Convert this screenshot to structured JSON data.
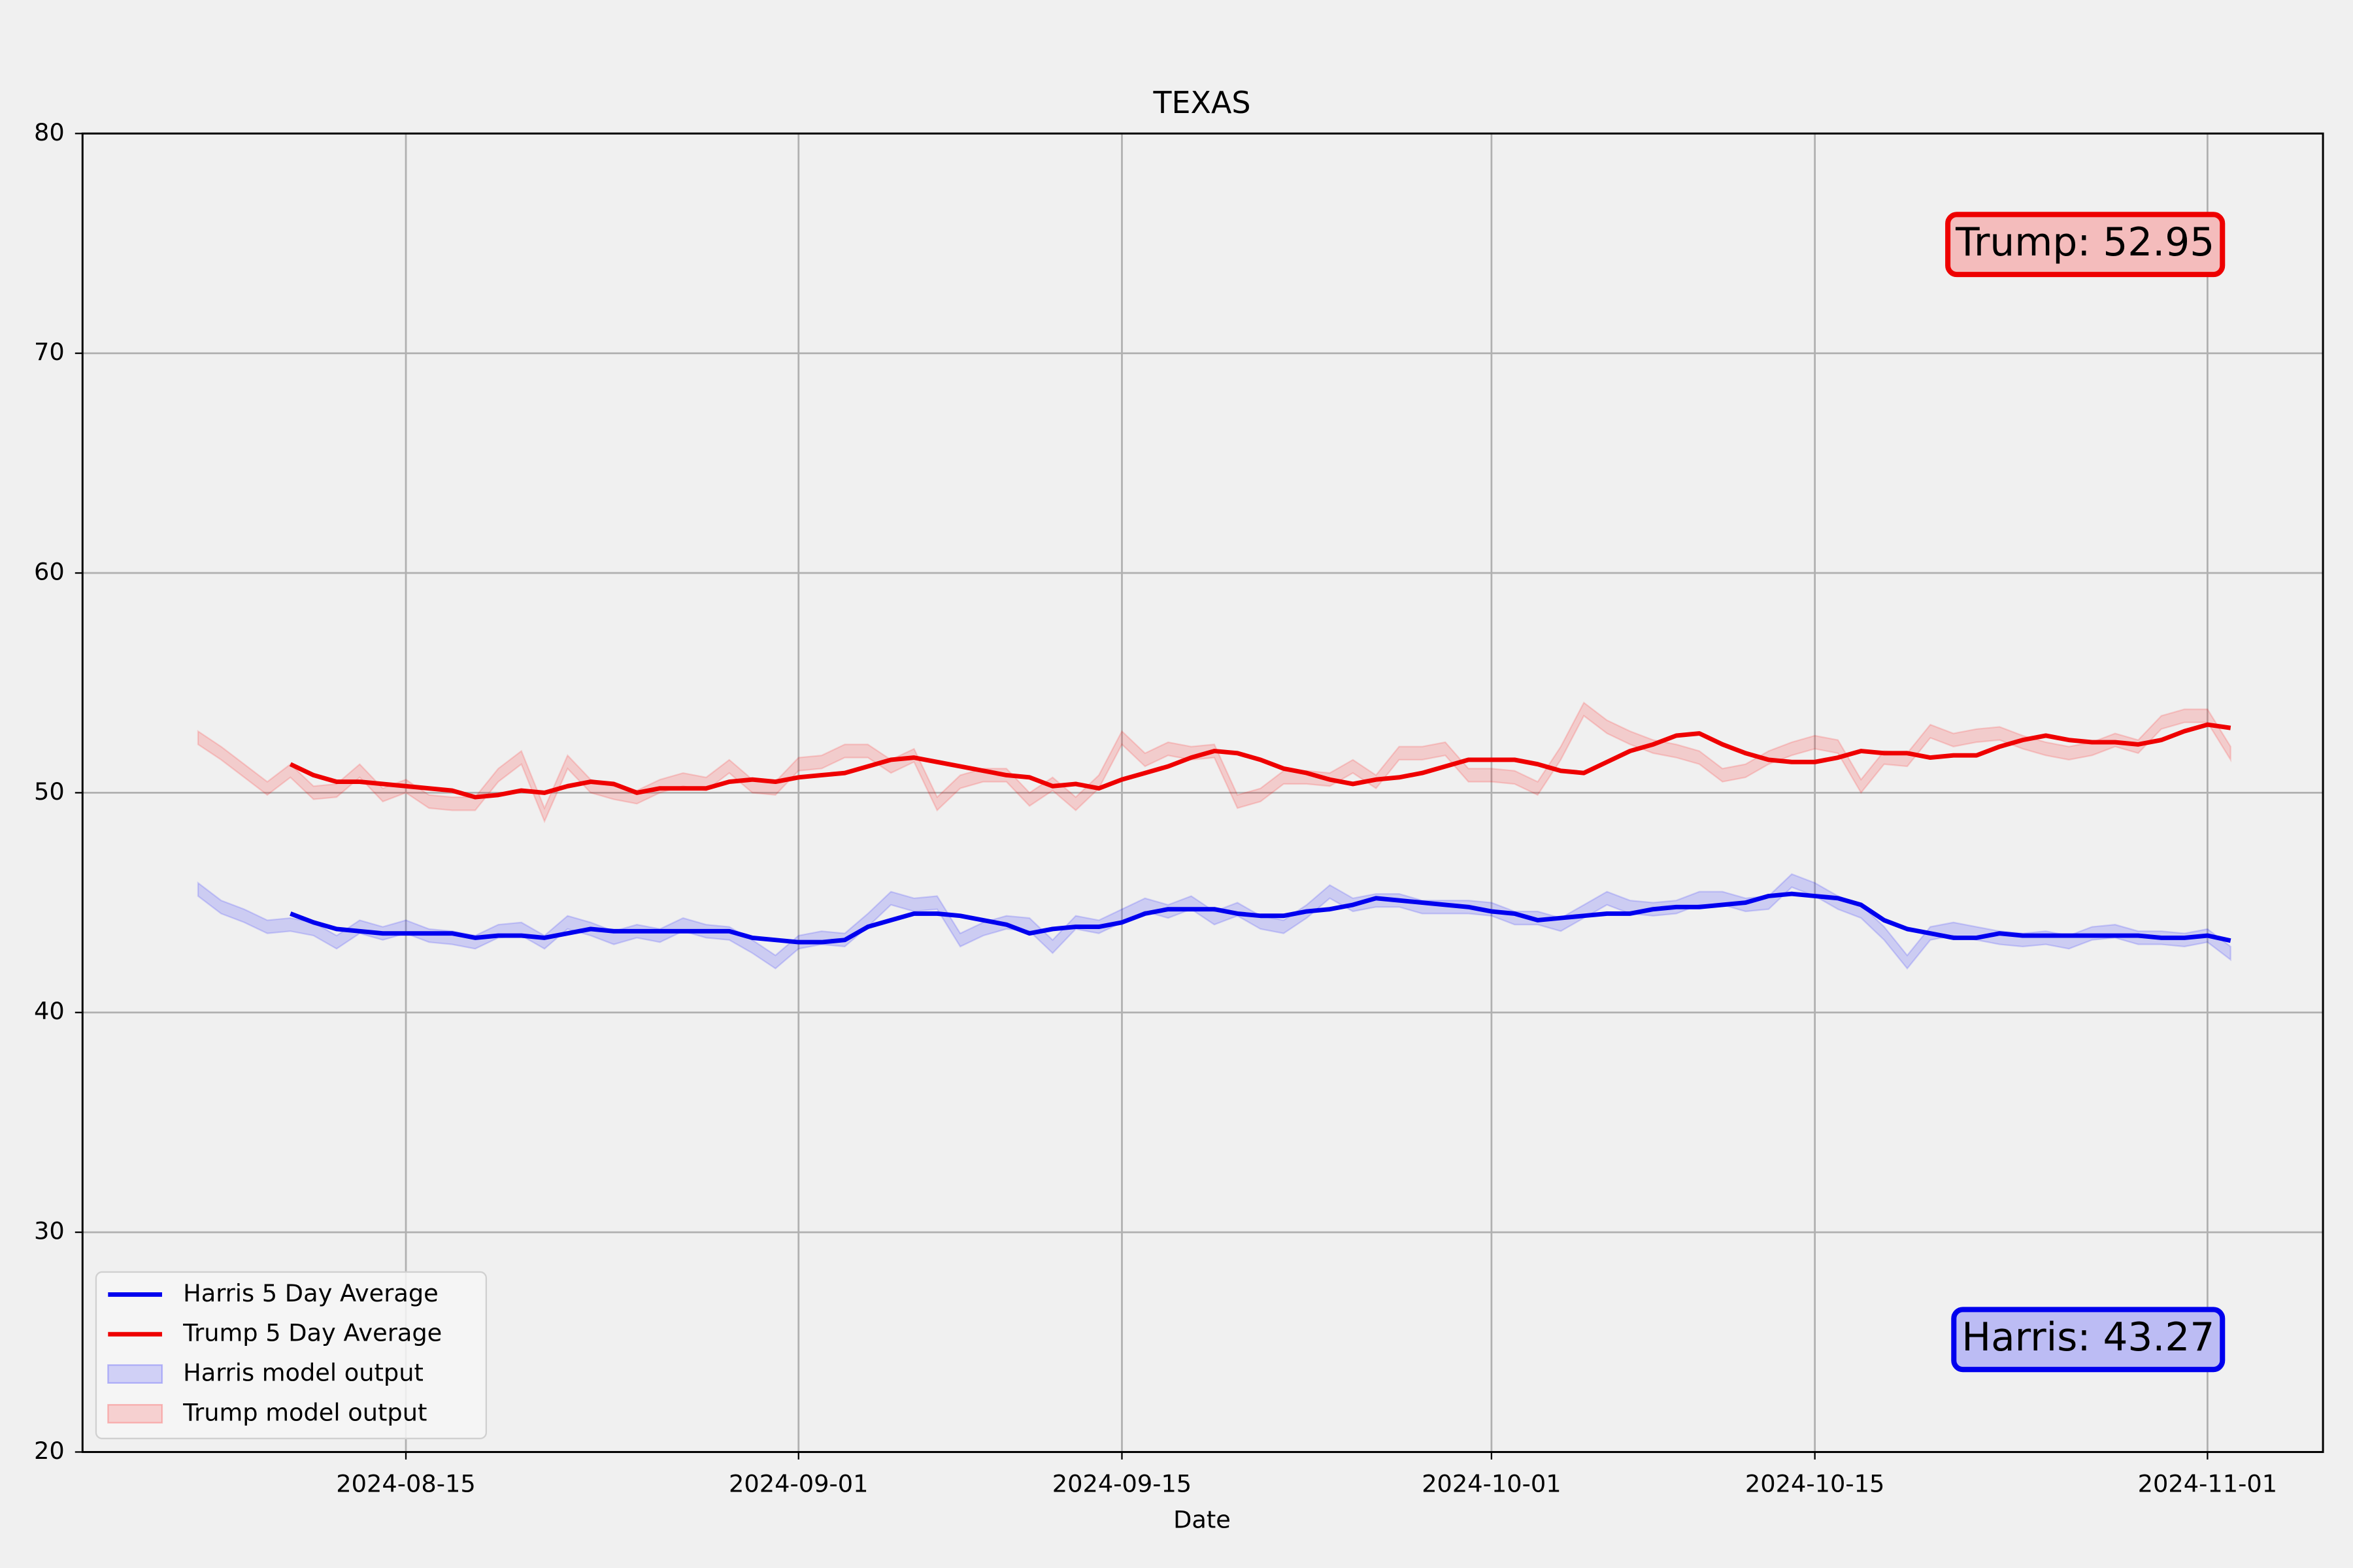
{
  "chart_data": {
    "type": "line",
    "title": "TEXAS",
    "xlabel": "Date",
    "x": [
      "2024-08-06",
      "2024-08-07",
      "2024-08-08",
      "2024-08-09",
      "2024-08-10",
      "2024-08-11",
      "2024-08-12",
      "2024-08-13",
      "2024-08-14",
      "2024-08-15",
      "2024-08-16",
      "2024-08-17",
      "2024-08-18",
      "2024-08-19",
      "2024-08-20",
      "2024-08-21",
      "2024-08-22",
      "2024-08-23",
      "2024-08-24",
      "2024-08-25",
      "2024-08-26",
      "2024-08-27",
      "2024-08-28",
      "2024-08-29",
      "2024-08-30",
      "2024-08-31",
      "2024-09-01",
      "2024-09-02",
      "2024-09-03",
      "2024-09-04",
      "2024-09-05",
      "2024-09-06",
      "2024-09-07",
      "2024-09-08",
      "2024-09-09",
      "2024-09-10",
      "2024-09-11",
      "2024-09-12",
      "2024-09-13",
      "2024-09-14",
      "2024-09-15",
      "2024-09-16",
      "2024-09-17",
      "2024-09-18",
      "2024-09-19",
      "2024-09-20",
      "2024-09-21",
      "2024-09-22",
      "2024-09-23",
      "2024-09-24",
      "2024-09-25",
      "2024-09-26",
      "2024-09-27",
      "2024-09-28",
      "2024-09-29",
      "2024-09-30",
      "2024-10-01",
      "2024-10-02",
      "2024-10-03",
      "2024-10-04",
      "2024-10-05",
      "2024-10-06",
      "2024-10-07",
      "2024-10-08",
      "2024-10-09",
      "2024-10-10",
      "2024-10-11",
      "2024-10-12",
      "2024-10-13",
      "2024-10-14",
      "2024-10-15",
      "2024-10-16",
      "2024-10-17",
      "2024-10-18",
      "2024-10-19",
      "2024-10-20",
      "2024-10-21",
      "2024-10-22",
      "2024-10-23",
      "2024-10-24",
      "2024-10-25",
      "2024-10-26",
      "2024-10-27",
      "2024-10-28",
      "2024-10-29",
      "2024-10-30",
      "2024-10-31",
      "2024-11-01",
      "2024-11-02"
    ],
    "series": [
      {
        "name": "Harris 5 Day Average",
        "color": "#0000ee",
        "values": [
          null,
          null,
          null,
          null,
          44.5,
          44.1,
          43.8,
          43.7,
          43.6,
          43.6,
          43.6,
          43.6,
          43.4,
          43.5,
          43.5,
          43.4,
          43.6,
          43.8,
          43.7,
          43.7,
          43.7,
          43.7,
          43.7,
          43.7,
          43.4,
          43.3,
          43.2,
          43.2,
          43.3,
          43.9,
          44.2,
          44.5,
          44.5,
          44.4,
          44.2,
          44.0,
          43.6,
          43.8,
          43.9,
          43.9,
          44.1,
          44.5,
          44.7,
          44.7,
          44.7,
          44.5,
          44.4,
          44.4,
          44.6,
          44.7,
          44.9,
          45.2,
          45.1,
          45.0,
          44.9,
          44.8,
          44.6,
          44.5,
          44.2,
          44.3,
          44.4,
          44.5,
          44.5,
          44.7,
          44.8,
          44.8,
          44.9,
          45.0,
          45.3,
          45.4,
          45.3,
          45.2,
          44.9,
          44.2,
          43.8,
          43.6,
          43.4,
          43.4,
          43.6,
          43.5,
          43.5,
          43.5,
          43.5,
          43.5,
          43.5,
          43.4,
          43.4,
          43.5,
          43.27
        ]
      },
      {
        "name": "Trump 5 Day Average",
        "color": "#ee0000",
        "values": [
          null,
          null,
          null,
          null,
          51.3,
          50.8,
          50.5,
          50.5,
          50.4,
          50.3,
          50.2,
          50.1,
          49.8,
          49.9,
          50.1,
          50.0,
          50.3,
          50.5,
          50.4,
          50.0,
          50.2,
          50.2,
          50.2,
          50.5,
          50.6,
          50.5,
          50.7,
          50.8,
          50.9,
          51.2,
          51.5,
          51.6,
          51.4,
          51.2,
          51.0,
          50.8,
          50.7,
          50.3,
          50.4,
          50.2,
          50.6,
          50.9,
          51.2,
          51.6,
          51.9,
          51.8,
          51.5,
          51.1,
          50.9,
          50.6,
          50.4,
          50.6,
          50.7,
          50.9,
          51.2,
          51.5,
          51.5,
          51.5,
          51.3,
          51.0,
          50.9,
          51.4,
          51.9,
          52.2,
          52.6,
          52.7,
          52.2,
          51.8,
          51.5,
          51.4,
          51.4,
          51.6,
          51.9,
          51.8,
          51.8,
          51.6,
          51.7,
          51.7,
          52.1,
          52.4,
          52.6,
          52.4,
          52.3,
          52.3,
          52.2,
          52.4,
          52.8,
          53.1,
          52.95
        ]
      }
    ],
    "bands": [
      {
        "name": "Harris model output",
        "color": "#0000ff",
        "alpha": 0.15,
        "lower": [
          45.3,
          44.5,
          44.1,
          43.6,
          43.7,
          43.5,
          42.9,
          43.6,
          43.3,
          43.6,
          43.2,
          43.1,
          42.9,
          43.4,
          43.5,
          42.9,
          43.8,
          43.5,
          43.1,
          43.4,
          43.2,
          43.7,
          43.4,
          43.3,
          42.7,
          42.0,
          42.9,
          43.1,
          43.0,
          43.9,
          44.9,
          44.6,
          44.7,
          43.0,
          43.5,
          43.8,
          43.7,
          42.7,
          43.8,
          43.6,
          44.1,
          44.6,
          44.3,
          44.7,
          44.0,
          44.4,
          43.8,
          43.6,
          44.3,
          45.2,
          44.6,
          44.8,
          44.8,
          44.5,
          44.5,
          44.5,
          44.4,
          44.0,
          44.0,
          43.7,
          44.3,
          44.9,
          44.5,
          44.4,
          44.5,
          44.9,
          44.9,
          44.6,
          44.7,
          45.7,
          45.3,
          44.7,
          44.3,
          43.3,
          42.0,
          43.3,
          43.5,
          43.3,
          43.1,
          43.0,
          43.1,
          42.9,
          43.3,
          43.4,
          43.1,
          43.1,
          43.0,
          43.2,
          42.4
        ],
        "upper": [
          45.9,
          45.1,
          44.7,
          44.2,
          44.3,
          44.1,
          43.5,
          44.2,
          43.9,
          44.2,
          43.8,
          43.7,
          43.5,
          44.0,
          44.1,
          43.5,
          44.4,
          44.1,
          43.7,
          44.0,
          43.8,
          44.3,
          44.0,
          43.9,
          43.3,
          42.6,
          43.5,
          43.7,
          43.6,
          44.5,
          45.5,
          45.2,
          45.3,
          43.6,
          44.1,
          44.4,
          44.3,
          43.3,
          44.4,
          44.2,
          44.7,
          45.2,
          44.9,
          45.3,
          44.6,
          45.0,
          44.4,
          44.2,
          44.9,
          45.8,
          45.2,
          45.4,
          45.4,
          45.1,
          45.1,
          45.1,
          45.0,
          44.6,
          44.6,
          44.3,
          44.9,
          45.5,
          45.1,
          45.0,
          45.1,
          45.5,
          45.5,
          45.2,
          45.3,
          46.3,
          45.9,
          45.3,
          44.9,
          43.9,
          42.6,
          43.9,
          44.1,
          43.9,
          43.7,
          43.6,
          43.7,
          43.5,
          43.9,
          44.0,
          43.7,
          43.7,
          43.6,
          43.8,
          43.0
        ]
      },
      {
        "name": "Trump model output",
        "color": "#ff0000",
        "alpha": 0.15,
        "lower": [
          52.2,
          51.5,
          50.7,
          49.9,
          50.7,
          49.7,
          49.8,
          50.7,
          49.6,
          50.0,
          49.3,
          49.2,
          49.2,
          50.5,
          51.3,
          48.7,
          51.1,
          50.0,
          49.7,
          49.5,
          50.0,
          50.3,
          50.1,
          50.9,
          50.0,
          49.9,
          51.0,
          51.1,
          51.6,
          51.6,
          50.9,
          51.4,
          49.2,
          50.2,
          50.5,
          50.5,
          49.4,
          50.1,
          49.2,
          50.2,
          52.2,
          51.2,
          51.7,
          51.5,
          51.6,
          49.3,
          49.6,
          50.4,
          50.4,
          50.3,
          50.9,
          50.2,
          51.5,
          51.5,
          51.7,
          50.5,
          50.5,
          50.4,
          49.9,
          51.5,
          53.5,
          52.7,
          52.2,
          51.8,
          51.6,
          51.3,
          50.5,
          50.7,
          51.3,
          51.7,
          52.0,
          51.8,
          50.0,
          51.3,
          51.2,
          52.5,
          52.1,
          52.3,
          52.4,
          52.0,
          51.7,
          51.5,
          51.7,
          52.1,
          51.8,
          52.9,
          53.2,
          53.2,
          51.5
        ],
        "upper": [
          52.8,
          52.1,
          51.3,
          50.5,
          51.3,
          50.3,
          50.4,
          51.3,
          50.2,
          50.6,
          49.9,
          49.8,
          49.8,
          51.1,
          51.9,
          49.3,
          51.7,
          50.6,
          50.3,
          50.1,
          50.6,
          50.9,
          50.7,
          51.5,
          50.6,
          50.5,
          51.6,
          51.7,
          52.2,
          52.2,
          51.5,
          52.0,
          49.8,
          50.8,
          51.1,
          51.1,
          50.0,
          50.7,
          49.8,
          50.8,
          52.8,
          51.8,
          52.3,
          52.1,
          52.2,
          49.9,
          50.2,
          51.0,
          51.0,
          50.9,
          51.5,
          50.8,
          52.1,
          52.1,
          52.3,
          51.1,
          51.1,
          51.0,
          50.5,
          52.1,
          54.1,
          53.3,
          52.8,
          52.4,
          52.2,
          51.9,
          51.1,
          51.3,
          51.9,
          52.3,
          52.6,
          52.4,
          50.6,
          51.9,
          51.8,
          53.1,
          52.7,
          52.9,
          53.0,
          52.6,
          52.3,
          52.1,
          52.3,
          52.7,
          52.4,
          53.5,
          53.8,
          53.8,
          52.1
        ]
      }
    ],
    "xlim": [
      "2024-08-01",
      "2024-11-06"
    ],
    "xticks": [
      "2024-08-15",
      "2024-09-01",
      "2024-09-15",
      "2024-10-01",
      "2024-10-15",
      "2024-11-01"
    ],
    "ylim": [
      20,
      80
    ],
    "yticks": [
      20,
      30,
      40,
      50,
      60,
      70,
      80
    ],
    "grid": true,
    "legend": "lower left",
    "annotations": [
      "Trump: 52.95",
      "Harris: 43.27"
    ]
  }
}
